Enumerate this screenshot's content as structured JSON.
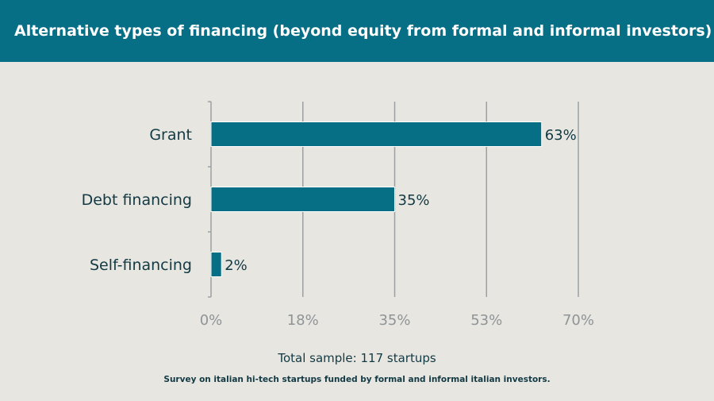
{
  "header": {
    "title": "Alternative types of financing (beyond equity from formal and informal investors)"
  },
  "chart_data": {
    "type": "bar",
    "orientation": "horizontal",
    "categories": [
      "Grant",
      "Debt financing",
      "Self-financing"
    ],
    "values": [
      63,
      35,
      2
    ],
    "value_labels": [
      "63%",
      "35%",
      "2%"
    ],
    "xlim": [
      0,
      70
    ],
    "xticks": [
      0,
      17.5,
      35,
      52.5,
      70
    ],
    "xtick_labels": [
      "0%",
      "18%",
      "35%",
      "53%",
      "70%"
    ],
    "grid": "vertical",
    "bar_color": "#066f86"
  },
  "footer": {
    "sample": "Total sample: 117 startups",
    "source": "Survey on italian hi-tech startups funded by formal and informal italian investors."
  }
}
